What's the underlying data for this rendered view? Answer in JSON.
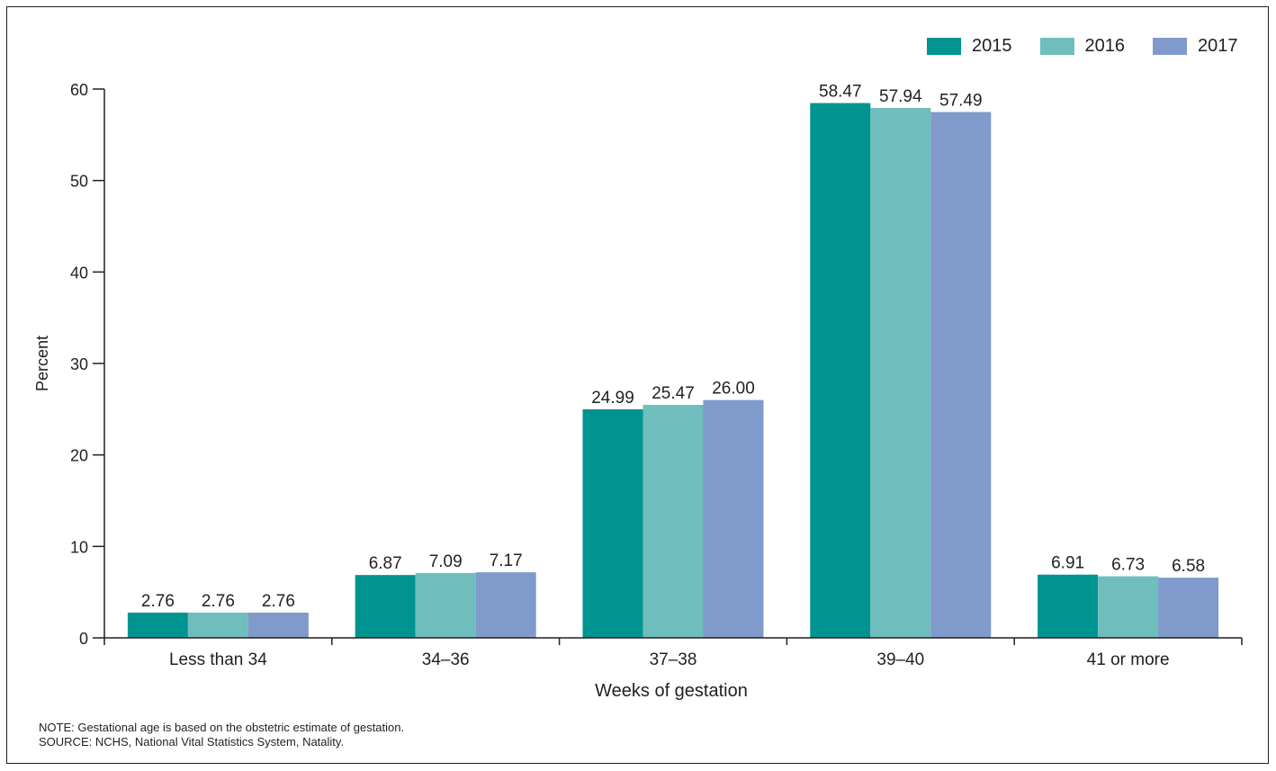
{
  "chart_data": {
    "type": "bar",
    "categories": [
      "Less than 34",
      "34–36",
      "37–38",
      "39–40",
      "41 or more"
    ],
    "series": [
      {
        "name": "2015",
        "color": "#009490",
        "values": [
          2.76,
          6.87,
          24.99,
          58.47,
          6.91
        ],
        "labels": [
          "2.76",
          "6.87",
          "24.99",
          "58.47",
          "6.91"
        ]
      },
      {
        "name": "2016",
        "color": "#6fbdbd",
        "values": [
          2.76,
          7.09,
          25.47,
          57.94,
          6.73
        ],
        "labels": [
          "2.76",
          "7.09",
          "25.47",
          "57.94",
          "6.73"
        ]
      },
      {
        "name": "2017",
        "color": "#7f9acb",
        "values": [
          2.76,
          7.17,
          26.0,
          57.49,
          6.58
        ],
        "labels": [
          "2.76",
          "7.17",
          "26.00",
          "57.49",
          "6.58"
        ]
      }
    ],
    "xlabel": "Weeks of gestation",
    "ylabel": "Percent",
    "ylim": [
      0,
      60
    ],
    "yticks": [
      "0",
      "10",
      "20",
      "30",
      "40",
      "50",
      "60"
    ],
    "grid": false,
    "legend_position": "top-right"
  },
  "notes": {
    "note": "NOTE: Gestational age is based on the obstetric estimate of gestation.",
    "source": "SOURCE: NCHS, National Vital Statistics System, Natality."
  }
}
